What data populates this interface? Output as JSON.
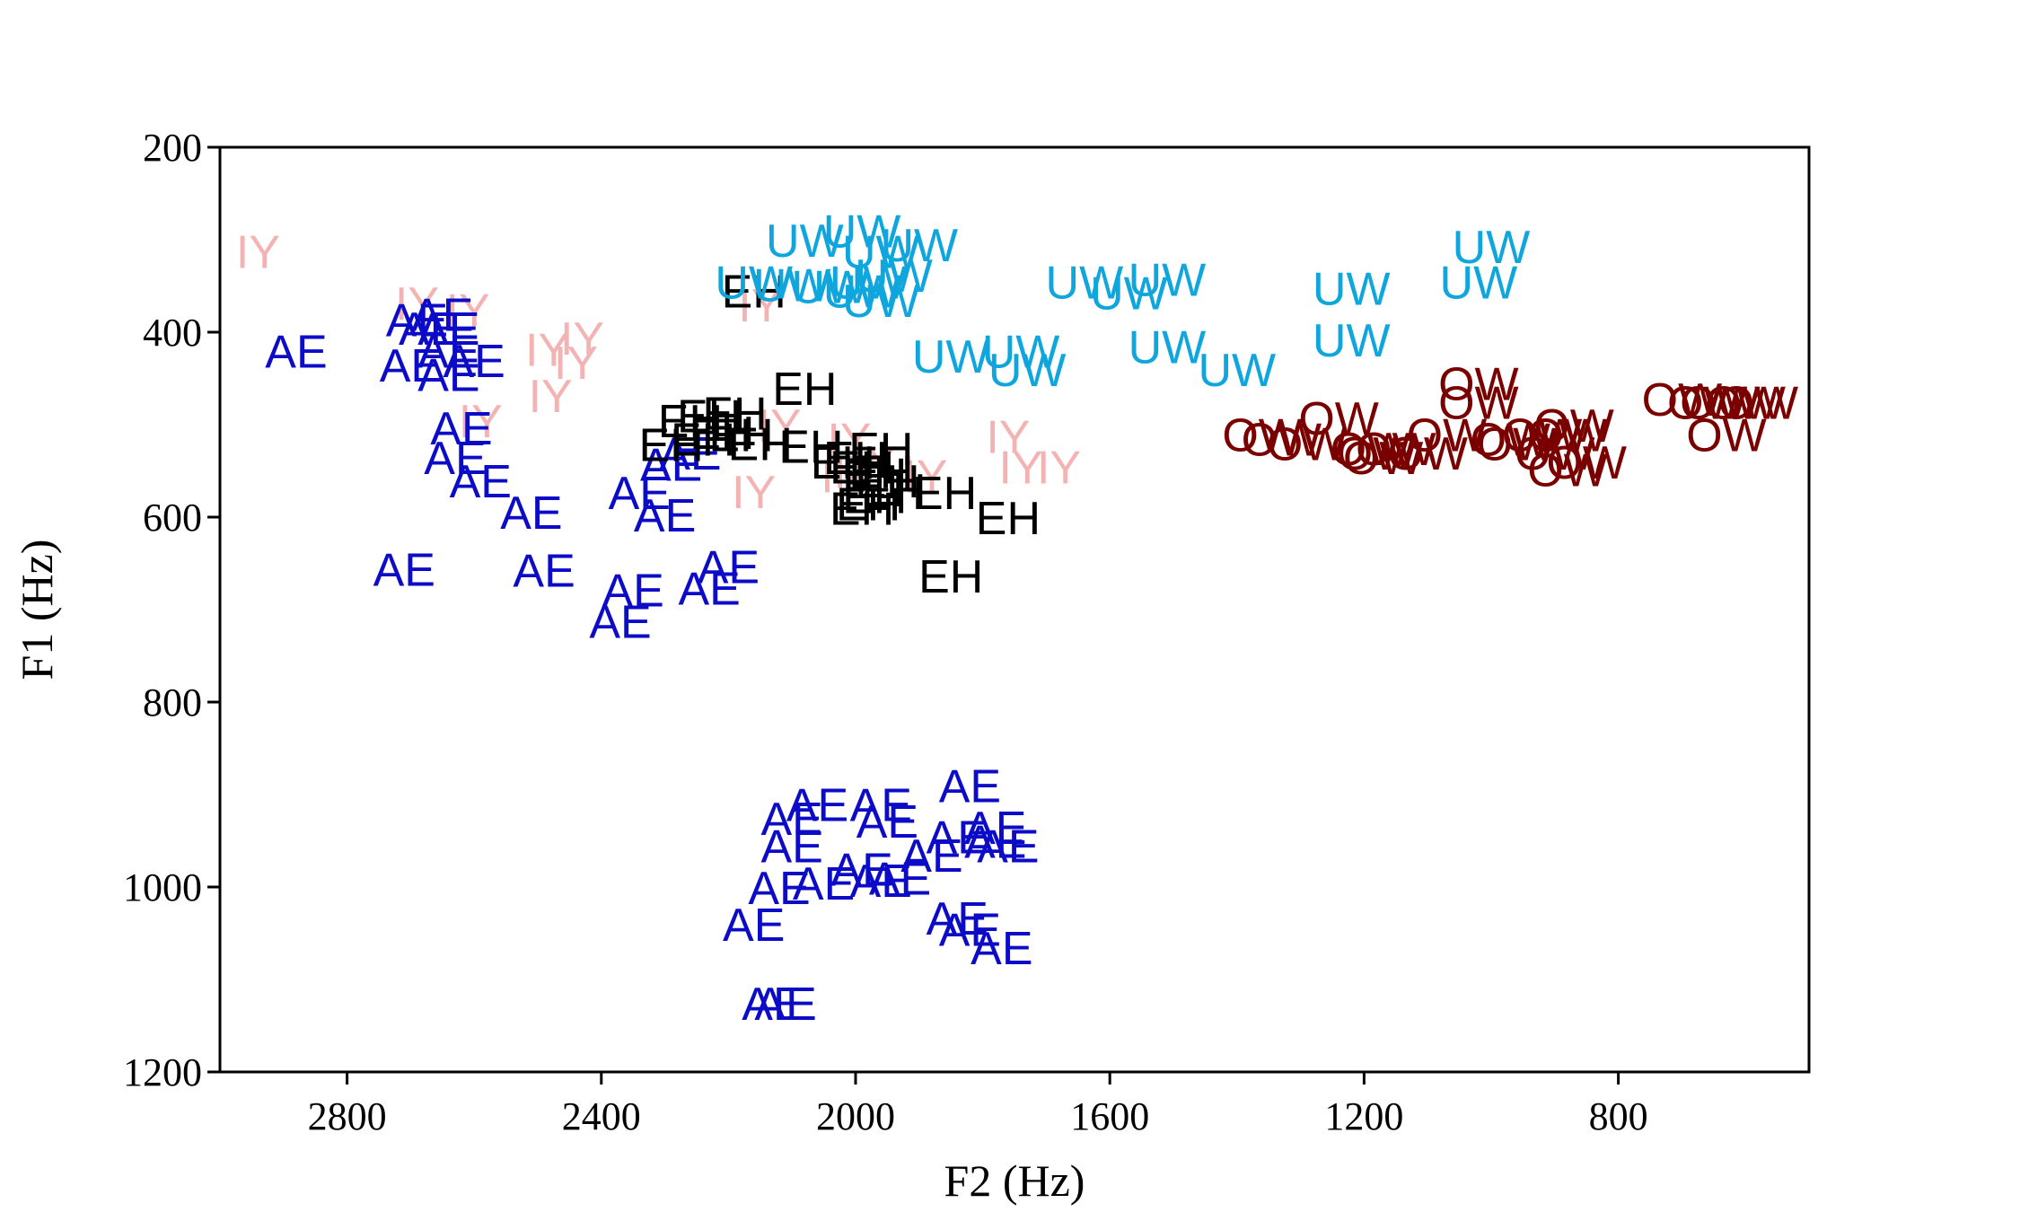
{
  "chart_data": {
    "type": "scatter",
    "title": "",
    "xlabel": "F2 (Hz)",
    "ylabel": "F1 (Hz)",
    "xlim": [
      3000,
      500
    ],
    "ylim": [
      1200,
      200
    ],
    "x_inverted": true,
    "y_inverted": true,
    "xticks": [
      2800,
      2400,
      2000,
      1600,
      1200,
      800
    ],
    "yticks": [
      200,
      400,
      600,
      800,
      1000,
      1200
    ],
    "grid": false,
    "marker": "text label",
    "colors": {
      "IY": "#f4b3b3",
      "AE": "#0b0bc8",
      "EH": "#000000",
      "UW": "#0fa6de",
      "OW": "#7a0000"
    },
    "series": [
      {
        "name": "IY",
        "points": [
          [
            2940,
            312
          ],
          [
            2690,
            368
          ],
          [
            2610,
            375
          ],
          [
            2485,
            418
          ],
          [
            2440,
            432
          ],
          [
            2430,
            406
          ],
          [
            2480,
            468
          ],
          [
            2590,
            495
          ],
          [
            2150,
            370
          ],
          [
            2120,
            500
          ],
          [
            2010,
            515
          ],
          [
            1970,
            540
          ],
          [
            2000,
            550
          ],
          [
            1890,
            555
          ],
          [
            2020,
            555
          ],
          [
            2160,
            572
          ],
          [
            1760,
            512
          ],
          [
            1740,
            545
          ],
          [
            1680,
            545
          ]
        ]
      },
      {
        "name": "AE",
        "points": [
          [
            2880,
            420
          ],
          [
            2690,
            386
          ],
          [
            2670,
            395
          ],
          [
            2650,
            380
          ],
          [
            2640,
            395
          ],
          [
            2640,
            420
          ],
          [
            2700,
            435
          ],
          [
            2640,
            445
          ],
          [
            2600,
            430
          ],
          [
            2620,
            503
          ],
          [
            2630,
            535
          ],
          [
            2590,
            560
          ],
          [
            2510,
            594
          ],
          [
            2710,
            656
          ],
          [
            2490,
            657
          ],
          [
            2340,
            573
          ],
          [
            2290,
            542
          ],
          [
            2260,
            530
          ],
          [
            2300,
            597
          ],
          [
            2350,
            678
          ],
          [
            2370,
            712
          ],
          [
            2200,
            653
          ],
          [
            2230,
            676
          ],
          [
            2100,
            925
          ],
          [
            2060,
            910
          ],
          [
            1960,
            910
          ],
          [
            1950,
            928
          ],
          [
            1840,
            945
          ],
          [
            1780,
            935
          ],
          [
            1780,
            950
          ],
          [
            1760,
            955
          ],
          [
            1820,
            890
          ],
          [
            1880,
            965
          ],
          [
            1990,
            980
          ],
          [
            1960,
            992
          ],
          [
            1930,
            990
          ],
          [
            2050,
            995
          ],
          [
            2100,
            955
          ],
          [
            2120,
            1000
          ],
          [
            2160,
            1040
          ],
          [
            2130,
            1125
          ],
          [
            2110,
            1125
          ],
          [
            1840,
            1033
          ],
          [
            1820,
            1045
          ],
          [
            1770,
            1065
          ]
        ]
      },
      {
        "name": "EH",
        "points": [
          [
            2160,
            355
          ],
          [
            2080,
            460
          ],
          [
            2260,
            495
          ],
          [
            2230,
            490
          ],
          [
            2190,
            487
          ],
          [
            2210,
            508
          ],
          [
            2240,
            515
          ],
          [
            2180,
            510
          ],
          [
            2290,
            521
          ],
          [
            2150,
            520
          ],
          [
            2070,
            523
          ],
          [
            2020,
            540
          ],
          [
            2000,
            535
          ],
          [
            1960,
            525
          ],
          [
            1990,
            545
          ],
          [
            1960,
            550
          ],
          [
            1970,
            553
          ],
          [
            1950,
            560
          ],
          [
            1940,
            570
          ],
          [
            1970,
            577
          ],
          [
            1980,
            585
          ],
          [
            1990,
            590
          ],
          [
            1860,
            573
          ],
          [
            1760,
            600
          ],
          [
            1850,
            663
          ]
        ]
      },
      {
        "name": "UW",
        "points": [
          [
            2080,
            300
          ],
          [
            1990,
            290
          ],
          [
            1960,
            312
          ],
          [
            1900,
            305
          ],
          [
            2160,
            345
          ],
          [
            2100,
            348
          ],
          [
            2040,
            350
          ],
          [
            1990,
            355
          ],
          [
            1980,
            345
          ],
          [
            1940,
            338
          ],
          [
            1960,
            365
          ],
          [
            1850,
            425
          ],
          [
            1740,
            420
          ],
          [
            1730,
            440
          ],
          [
            1640,
            345
          ],
          [
            1570,
            357
          ],
          [
            1510,
            342
          ],
          [
            1510,
            415
          ],
          [
            1400,
            440
          ],
          [
            1220,
            352
          ],
          [
            1220,
            408
          ],
          [
            1000,
            307
          ],
          [
            1020,
            345
          ]
        ]
      },
      {
        "name": "OW",
        "points": [
          [
            1360,
            510
          ],
          [
            1330,
            515
          ],
          [
            1290,
            520
          ],
          [
            1240,
            492
          ],
          [
            1190,
            525
          ],
          [
            1180,
            530
          ],
          [
            1170,
            535
          ],
          [
            1150,
            525
          ],
          [
            1100,
            530
          ],
          [
            1070,
            510
          ],
          [
            1020,
            475
          ],
          [
            1020,
            455
          ],
          [
            970,
            515
          ],
          [
            960,
            520
          ],
          [
            920,
            510
          ],
          [
            900,
            530
          ],
          [
            880,
            510
          ],
          [
            870,
            500
          ],
          [
            880,
            548
          ],
          [
            850,
            540
          ],
          [
            700,
            472
          ],
          [
            660,
            475
          ],
          [
            640,
            475
          ],
          [
            600,
            475
          ],
          [
            580,
            475
          ],
          [
            630,
            510
          ]
        ]
      }
    ]
  }
}
